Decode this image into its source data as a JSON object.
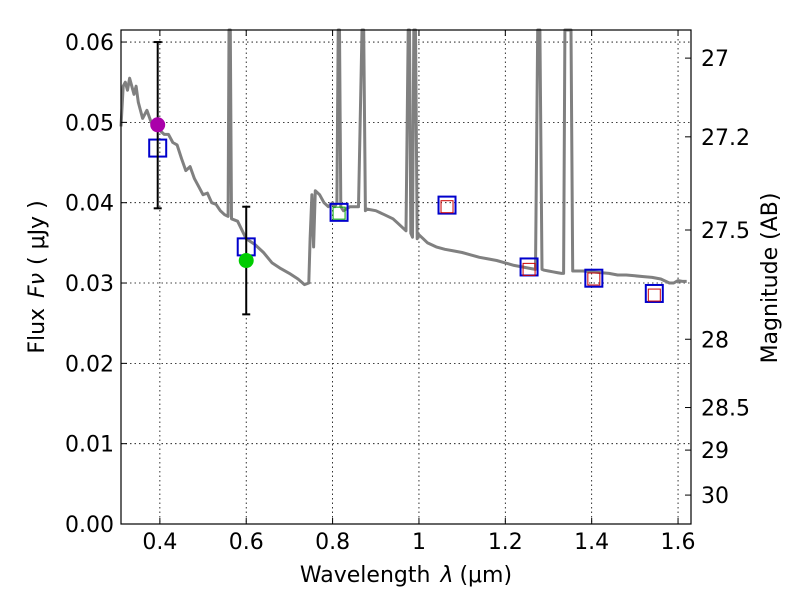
{
  "chart_data": {
    "type": "scatter",
    "xlabel": "Wavelength",
    "xlabel_symbol": "λ",
    "xlabel_unit": "(μm)",
    "ylabel": "Flux",
    "ylabel_symbol": "Fν",
    "ylabel_unit": "( μJy )",
    "y2label": "Magnitude (AB)",
    "xlim": [
      0.31,
      1.63
    ],
    "ylim": [
      0.0,
      0.0615
    ],
    "grid": true,
    "x_ticks": [
      0.4,
      0.6,
      0.8,
      1.0,
      1.2,
      1.4,
      1.6
    ],
    "x_tick_labels": [
      "0.4",
      "0.6",
      "0.8",
      "1",
      "1.2",
      "1.4",
      "1.6"
    ],
    "y_ticks": [
      0.0,
      0.01,
      0.02,
      0.03,
      0.04,
      0.05,
      0.06
    ],
    "y_tick_labels": [
      "0.00",
      "0.01",
      "0.02",
      "0.03",
      "0.04",
      "0.05",
      "0.06"
    ],
    "mag_ticks": [
      {
        "label": "27",
        "flux": 0.058
      },
      {
        "label": "27.2",
        "flux": 0.0482
      },
      {
        "label": "27.5",
        "flux": 0.0366
      },
      {
        "label": "28",
        "flux": 0.023
      },
      {
        "label": "28.5",
        "flux": 0.0145
      },
      {
        "label": "29",
        "flux": 0.0092
      },
      {
        "label": "30",
        "flux": 0.0036
      }
    ],
    "colors": {
      "model": "#808080",
      "model_box": "#0000cc",
      "observed_box_inner": "#cc0000",
      "observed_green_box": "#00aa00",
      "point_magenta": "#aa00aa",
      "point_green": "#00cc00",
      "error_bar": "#000000"
    },
    "series": [
      {
        "name": "model_sed",
        "kind": "line",
        "x": [
          0.31,
          0.315,
          0.32,
          0.325,
          0.33,
          0.335,
          0.34,
          0.345,
          0.35,
          0.36,
          0.37,
          0.38,
          0.39,
          0.4,
          0.41,
          0.42,
          0.43,
          0.44,
          0.45,
          0.46,
          0.47,
          0.48,
          0.49,
          0.5,
          0.51,
          0.52,
          0.53,
          0.54,
          0.55,
          0.558,
          0.56,
          0.563,
          0.566,
          0.58,
          0.6,
          0.62,
          0.64,
          0.66,
          0.68,
          0.7,
          0.72,
          0.735,
          0.745,
          0.748,
          0.752,
          0.756,
          0.76,
          0.77,
          0.78,
          0.79,
          0.8,
          0.805,
          0.81,
          0.813,
          0.816,
          0.819,
          0.825,
          0.84,
          0.86,
          0.868,
          0.872,
          0.876,
          0.88,
          0.9,
          0.92,
          0.94,
          0.95,
          0.96,
          0.97,
          0.975,
          0.978,
          0.981,
          0.985,
          0.988,
          0.992,
          0.996,
          1.0,
          1.01,
          1.02,
          1.04,
          1.06,
          1.08,
          1.1,
          1.12,
          1.14,
          1.16,
          1.18,
          1.2,
          1.22,
          1.24,
          1.26,
          1.27,
          1.275,
          1.28,
          1.285,
          1.29,
          1.3,
          1.31,
          1.32,
          1.33,
          1.335,
          1.338,
          1.342,
          1.348,
          1.352,
          1.356,
          1.36,
          1.38,
          1.4,
          1.42,
          1.44,
          1.46,
          1.48,
          1.5,
          1.52,
          1.54,
          1.56,
          1.58,
          1.59,
          1.6,
          1.61,
          1.62
        ],
        "y": [
          0.0495,
          0.0545,
          0.055,
          0.054,
          0.0555,
          0.0545,
          0.0535,
          0.0545,
          0.0525,
          0.0505,
          0.0515,
          0.05,
          0.0495,
          0.049,
          0.0485,
          0.0485,
          0.0475,
          0.0472,
          0.0455,
          0.044,
          0.0445,
          0.043,
          0.042,
          0.041,
          0.0412,
          0.04,
          0.0398,
          0.039,
          0.0385,
          0.0383,
          0.0615,
          0.0615,
          0.038,
          0.0377,
          0.0355,
          0.0348,
          0.0338,
          0.0325,
          0.0318,
          0.0312,
          0.0305,
          0.0298,
          0.03,
          0.0355,
          0.041,
          0.0345,
          0.0415,
          0.041,
          0.04,
          0.0395,
          0.04,
          0.0395,
          0.04,
          0.0615,
          0.0615,
          0.0395,
          0.039,
          0.0395,
          0.0395,
          0.0615,
          0.0615,
          0.039,
          0.0392,
          0.039,
          0.0385,
          0.038,
          0.0375,
          0.037,
          0.0365,
          0.0615,
          0.0615,
          0.0362,
          0.0357,
          0.0615,
          0.0615,
          0.0355,
          0.036,
          0.0355,
          0.035,
          0.0345,
          0.0342,
          0.034,
          0.0338,
          0.0335,
          0.0332,
          0.033,
          0.0328,
          0.0325,
          0.0322,
          0.032,
          0.0318,
          0.0317,
          0.0615,
          0.0615,
          0.0317,
          0.0316,
          0.0315,
          0.0314,
          0.0313,
          0.0312,
          0.0312,
          0.0615,
          0.0615,
          0.0615,
          0.0615,
          0.0315,
          0.0315,
          0.0315,
          0.0314,
          0.0313,
          0.0312,
          0.031,
          0.031,
          0.0309,
          0.0308,
          0.0307,
          0.0305,
          0.03,
          0.03,
          0.0303,
          0.0302,
          0.0302
        ]
      },
      {
        "name": "model_photometry",
        "kind": "square",
        "x": [
          0.395,
          0.6,
          0.815,
          1.065,
          1.255,
          1.405,
          1.545
        ],
        "y": [
          0.0468,
          0.0345,
          0.0388,
          0.0397,
          0.032,
          0.0306,
          0.0287
        ]
      },
      {
        "name": "observed_photometry",
        "kind": "small_square",
        "x": [
          0.815,
          1.065,
          1.255,
          1.405,
          1.545
        ],
        "y": [
          0.0387,
          0.0395,
          0.0317,
          0.0305,
          0.0285
        ],
        "colors": [
          "#00aa00",
          "#cc0000",
          "#cc0000",
          "#cc0000",
          "#cc0000"
        ]
      },
      {
        "name": "measured_points",
        "kind": "circle",
        "x": [
          0.395,
          0.6
        ],
        "y": [
          0.0497,
          0.0328
        ],
        "yerr_low": [
          0.0393,
          0.0261
        ],
        "yerr_high": [
          0.06,
          0.0395
        ],
        "colors": [
          "#aa00aa",
          "#00cc00"
        ]
      }
    ]
  }
}
